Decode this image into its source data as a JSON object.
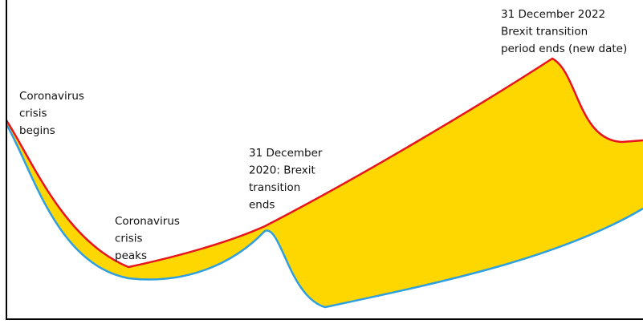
{
  "annotations": [
    {
      "lines": [
        "Coronavirus",
        "crisis",
        "begins"
      ]
    },
    {
      "lines": [
        "Coronavirus",
        "crisis",
        "peaks"
      ]
    },
    {
      "lines": [
        "31 December",
        "2020: Brexit",
        "transition",
        "ends"
      ]
    },
    {
      "lines": [
        "31 December 2022",
        "Brexit transition",
        "period ends (new date)"
      ]
    }
  ]
}
